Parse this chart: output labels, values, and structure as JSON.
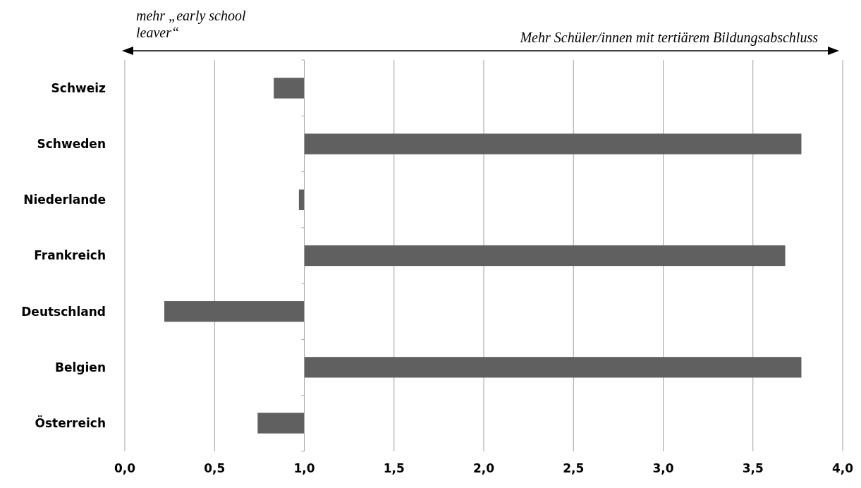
{
  "chart_data": {
    "type": "bar",
    "orientation": "horizontal",
    "categories": [
      "Schweiz",
      "Schweden",
      "Niederlande",
      "Frankreich",
      "Deutschland",
      "Belgien",
      "Österreich"
    ],
    "base": [
      1,
      1,
      1,
      1,
      1,
      1,
      1
    ],
    "values": [
      -0.17,
      2.77,
      -0.03,
      2.68,
      -0.78,
      2.77,
      -0.26
    ],
    "color": "#606060",
    "xlim": [
      0,
      4
    ],
    "xticks": [
      {
        "value": 0,
        "label": "0,0"
      },
      {
        "value": 0.5,
        "label": "0,5"
      },
      {
        "value": 1,
        "label": "1,0"
      },
      {
        "value": 1.5,
        "label": "1,5"
      },
      {
        "value": 2,
        "label": "2,0"
      },
      {
        "value": 2.5,
        "label": "2,5"
      },
      {
        "value": 3,
        "label": "3,0"
      },
      {
        "value": 3.5,
        "label": "3,5"
      },
      {
        "value": 4,
        "label": "4,0"
      }
    ],
    "grid": "x",
    "annotations": [
      "mehr „early school leaver“",
      "Mehr Schüler/innen mit tertiärem Bildungsabschluss"
    ]
  }
}
